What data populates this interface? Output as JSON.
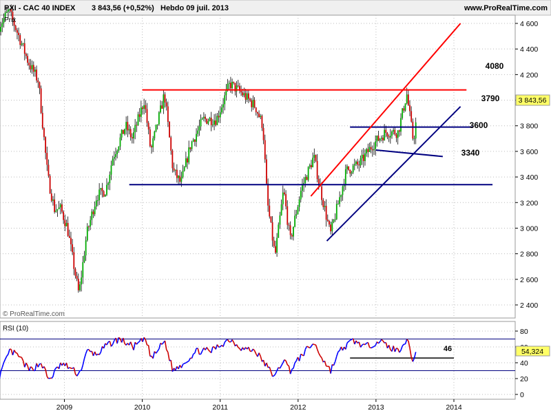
{
  "header": {
    "instrument": "PXI - CAC 40 INDEX",
    "last_change": "3 843,56 (+0,52%)",
    "period_date": "Hebdo  09 juil. 2013",
    "site": "www.ProRealTime.com"
  },
  "price_panel": {
    "label": "Prix",
    "watermark": "© ProRealTime.com",
    "last_value_tag": "3 843,56"
  },
  "rsi_panel": {
    "label": "RSI (10)",
    "last_value_tag": "54,324",
    "level_label": "46"
  },
  "colors": {
    "up_candle": "#00aa00",
    "down_candle": "#cc0000",
    "support_line": "#000080",
    "resistance_line": "#ff0000",
    "rsi_up": "#0000ff",
    "rsi_down": "#cc0000",
    "axis_tag_bg": "#ffff66"
  },
  "chart_data": [
    {
      "type": "candlestick",
      "title": "PXI - CAC 40 INDEX",
      "timeframe": "weekly",
      "x_axis": {
        "type": "date",
        "range": [
          "2008-03-01",
          "2014-06-30"
        ],
        "tick_labels": [
          "2009",
          "2010",
          "2011",
          "2012",
          "2013",
          "2014"
        ]
      },
      "y_axis": {
        "range": [
          2300,
          4700
        ],
        "side": "right",
        "tick_labels": [
          "2 400",
          "2 600",
          "2 800",
          "3 000",
          "3 200",
          "3 400",
          "3 600",
          "3 800",
          "4 000",
          "4 200",
          "4 400",
          "4 600"
        ]
      },
      "grid": true,
      "price_path": [
        [
          "2008-03-01",
          4580
        ],
        [
          "2008-04-15",
          4700
        ],
        [
          "2008-06-01",
          4500
        ],
        [
          "2008-07-15",
          4300
        ],
        [
          "2008-09-01",
          4150
        ],
        [
          "2008-10-15",
          3400
        ],
        [
          "2008-11-15",
          3150
        ],
        [
          "2008-12-15",
          3150
        ],
        [
          "2009-01-15",
          3000
        ],
        [
          "2009-02-15",
          2700
        ],
        [
          "2009-03-10",
          2480
        ],
        [
          "2009-04-15",
          2950
        ],
        [
          "2009-06-01",
          3250
        ],
        [
          "2009-07-15",
          3300
        ],
        [
          "2009-08-15",
          3550
        ],
        [
          "2009-10-15",
          3800
        ],
        [
          "2009-11-15",
          3700
        ],
        [
          "2010-01-10",
          4000
        ],
        [
          "2010-02-10",
          3600
        ],
        [
          "2010-04-15",
          4050
        ],
        [
          "2010-05-25",
          3450
        ],
        [
          "2010-07-01",
          3350
        ],
        [
          "2010-08-15",
          3650
        ],
        [
          "2010-10-15",
          3850
        ],
        [
          "2010-12-15",
          3850
        ],
        [
          "2011-02-15",
          4130
        ],
        [
          "2011-04-15",
          4050
        ],
        [
          "2011-06-15",
          3950
        ],
        [
          "2011-07-20",
          3800
        ],
        [
          "2011-08-10",
          3200
        ],
        [
          "2011-09-15",
          2780
        ],
        [
          "2011-10-25",
          3300
        ],
        [
          "2011-11-25",
          2900
        ],
        [
          "2012-01-15",
          3300
        ],
        [
          "2012-03-15",
          3560
        ],
        [
          "2012-04-15",
          3300
        ],
        [
          "2012-06-01",
          2950
        ],
        [
          "2012-07-01",
          3150
        ],
        [
          "2012-08-15",
          3450
        ],
        [
          "2012-10-15",
          3500
        ],
        [
          "2012-12-15",
          3650
        ],
        [
          "2013-02-15",
          3750
        ],
        [
          "2013-04-15",
          3750
        ],
        [
          "2013-05-25",
          4050
        ],
        [
          "2013-06-25",
          3680
        ],
        [
          "2013-07-09",
          3843
        ]
      ],
      "trend_lines": [
        {
          "label": "4080",
          "color": "resistance",
          "from": [
            "2010-01-01",
            4080
          ],
          "to": [
            "2014-03-01",
            4080
          ]
        },
        {
          "label": "3790",
          "color": "support",
          "from": [
            "2012-09-01",
            3790
          ],
          "to": [
            "2014-04-01",
            3790
          ]
        },
        {
          "label": "3600",
          "color": "support",
          "from": [
            "2013-01-01",
            3610
          ],
          "to": [
            "2013-11-10",
            3560
          ]
        },
        {
          "label": "3340",
          "color": "support",
          "from": [
            "2009-11-01",
            3340
          ],
          "to": [
            "2014-07-01",
            3340
          ]
        },
        {
          "label": "",
          "color": "resistance",
          "from": [
            "2012-03-01",
            3250
          ],
          "to": [
            "2014-02-01",
            4600
          ]
        },
        {
          "label": "",
          "color": "support",
          "from": [
            "2012-05-15",
            2900
          ],
          "to": [
            "2014-02-01",
            3950
          ]
        }
      ]
    },
    {
      "type": "line",
      "title": "RSI (10)",
      "y_axis": {
        "range": [
          0,
          80
        ],
        "side": "right",
        "tick_labels": [
          "0",
          "20",
          "40",
          "60",
          "80"
        ]
      },
      "levels": [
        70,
        30
      ],
      "annotation": {
        "label": "46",
        "value": 46,
        "from": "2012-09-01",
        "to": "2014-01-01"
      },
      "rsi_path": [
        [
          "2008-03-01",
          22
        ],
        [
          "2008-04-20",
          55
        ],
        [
          "2008-06-01",
          48
        ],
        [
          "2008-07-20",
          30
        ],
        [
          "2008-09-15",
          40
        ],
        [
          "2008-10-20",
          18
        ],
        [
          "2008-12-15",
          38
        ],
        [
          "2009-01-20",
          35
        ],
        [
          "2009-03-10",
          25
        ],
        [
          "2009-04-20",
          55
        ],
        [
          "2009-06-01",
          50
        ],
        [
          "2009-07-20",
          62
        ],
        [
          "2009-09-15",
          70
        ],
        [
          "2009-11-20",
          60
        ],
        [
          "2010-01-15",
          70
        ],
        [
          "2010-02-15",
          45
        ],
        [
          "2010-04-15",
          68
        ],
        [
          "2010-05-25",
          30
        ],
        [
          "2010-07-15",
          40
        ],
        [
          "2010-09-15",
          55
        ],
        [
          "2010-11-20",
          55
        ],
        [
          "2011-02-15",
          70
        ],
        [
          "2011-04-15",
          58
        ],
        [
          "2011-06-15",
          55
        ],
        [
          "2011-07-20",
          42
        ],
        [
          "2011-09-15",
          22
        ],
        [
          "2011-10-25",
          45
        ],
        [
          "2011-11-25",
          30
        ],
        [
          "2012-01-25",
          52
        ],
        [
          "2012-03-15",
          65
        ],
        [
          "2012-04-25",
          45
        ],
        [
          "2012-06-01",
          30
        ],
        [
          "2012-07-15",
          55
        ],
        [
          "2012-09-15",
          68
        ],
        [
          "2012-11-15",
          60
        ],
        [
          "2013-01-15",
          68
        ],
        [
          "2013-03-01",
          60
        ],
        [
          "2013-04-15",
          55
        ],
        [
          "2013-05-25",
          70
        ],
        [
          "2013-06-25",
          42
        ],
        [
          "2013-07-09",
          54.3
        ]
      ]
    }
  ]
}
